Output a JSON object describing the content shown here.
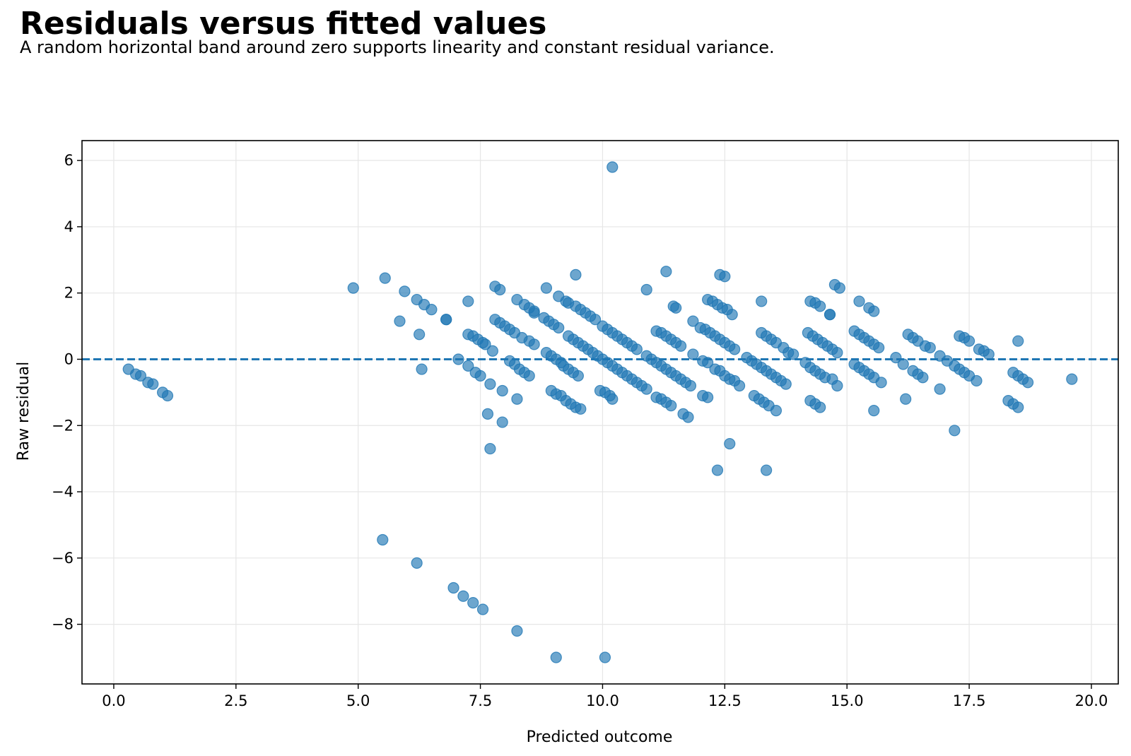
{
  "title": "Residuals versus fitted values",
  "subtitle": "A random horizontal band around zero supports linearity and constant residual variance.",
  "chart_data": {
    "type": "scatter",
    "xlabel": "Predicted outcome",
    "ylabel": "Raw residual",
    "xlim": [
      -0.65,
      20.55
    ],
    "ylim": [
      -9.8,
      6.6
    ],
    "xticks": [
      0.0,
      2.5,
      5.0,
      7.5,
      10.0,
      12.5,
      15.0,
      17.5,
      20.0
    ],
    "xtick_labels": [
      "0.0",
      "2.5",
      "5.0",
      "7.5",
      "10.0",
      "12.5",
      "15.0",
      "17.5",
      "20.0"
    ],
    "yticks": [
      -8,
      -6,
      -4,
      -2,
      0,
      2,
      4,
      6
    ],
    "ytick_labels": [
      "−8",
      "−6",
      "−4",
      "−2",
      "0",
      "2",
      "4",
      "6"
    ],
    "grid": true,
    "reference_line": {
      "y": 0,
      "style": "dashed"
    },
    "colors": {
      "points": "#1f77b4",
      "reference_line": "#1f77b4",
      "grid": "#e6e6e6",
      "axes": "#000000"
    },
    "points": [
      [
        0.3,
        -0.3
      ],
      [
        0.45,
        -0.45
      ],
      [
        0.55,
        -0.5
      ],
      [
        0.7,
        -0.7
      ],
      [
        0.8,
        -0.75
      ],
      [
        1.0,
        -1.0
      ],
      [
        1.1,
        -1.1
      ],
      [
        4.9,
        2.15
      ],
      [
        5.55,
        2.45
      ],
      [
        5.95,
        2.05
      ],
      [
        5.85,
        1.15
      ],
      [
        6.2,
        1.8
      ],
      [
        6.35,
        1.65
      ],
      [
        6.5,
        1.5
      ],
      [
        6.8,
        1.2
      ],
      [
        6.8,
        1.2
      ],
      [
        6.25,
        0.75
      ],
      [
        6.3,
        -0.3
      ],
      [
        7.05,
        0.0
      ],
      [
        7.25,
        1.75
      ],
      [
        7.25,
        0.75
      ],
      [
        7.35,
        0.7
      ],
      [
        7.45,
        0.6
      ],
      [
        7.55,
        0.5
      ],
      [
        7.6,
        0.45
      ],
      [
        7.25,
        -0.2
      ],
      [
        7.4,
        -0.4
      ],
      [
        7.5,
        -0.5
      ],
      [
        7.75,
        0.25
      ],
      [
        7.7,
        -0.75
      ],
      [
        7.95,
        -0.95
      ],
      [
        7.65,
        -1.65
      ],
      [
        7.95,
        -1.9
      ],
      [
        7.7,
        -2.7
      ],
      [
        7.8,
        2.2
      ],
      [
        7.9,
        2.1
      ],
      [
        7.8,
        1.2
      ],
      [
        7.9,
        1.1
      ],
      [
        8.0,
        1.0
      ],
      [
        8.1,
        0.9
      ],
      [
        8.2,
        0.8
      ],
      [
        8.1,
        -0.05
      ],
      [
        8.2,
        -0.15
      ],
      [
        8.3,
        -0.3
      ],
      [
        8.4,
        -0.4
      ],
      [
        8.5,
        -0.5
      ],
      [
        8.25,
        -1.2
      ],
      [
        8.25,
        1.8
      ],
      [
        8.4,
        1.65
      ],
      [
        8.5,
        1.55
      ],
      [
        8.6,
        1.45
      ],
      [
        8.6,
        1.4
      ],
      [
        8.35,
        0.65
      ],
      [
        8.5,
        0.55
      ],
      [
        8.6,
        0.45
      ],
      [
        8.85,
        2.15
      ],
      [
        8.8,
        1.25
      ],
      [
        8.9,
        1.15
      ],
      [
        9.0,
        1.05
      ],
      [
        9.1,
        0.95
      ],
      [
        8.85,
        0.2
      ],
      [
        8.95,
        0.1
      ],
      [
        9.05,
        0.0
      ],
      [
        9.15,
        -0.1
      ],
      [
        9.2,
        -0.2
      ],
      [
        9.3,
        -0.3
      ],
      [
        9.4,
        -0.4
      ],
      [
        9.5,
        -0.5
      ],
      [
        8.95,
        -0.95
      ],
      [
        9.05,
        -1.05
      ],
      [
        9.15,
        -1.1
      ],
      [
        9.25,
        -1.25
      ],
      [
        9.35,
        -1.35
      ],
      [
        9.45,
        -1.45
      ],
      [
        9.55,
        -1.5
      ],
      [
        9.1,
        1.9
      ],
      [
        9.25,
        1.75
      ],
      [
        9.3,
        1.7
      ],
      [
        9.45,
        1.6
      ],
      [
        9.45,
        2.55
      ],
      [
        9.3,
        0.7
      ],
      [
        9.4,
        0.6
      ],
      [
        9.5,
        0.5
      ],
      [
        9.6,
        0.4
      ],
      [
        9.7,
        0.3
      ],
      [
        9.8,
        0.2
      ],
      [
        9.9,
        0.1
      ],
      [
        10.0,
        0.0
      ],
      [
        10.1,
        -0.1
      ],
      [
        10.2,
        -0.2
      ],
      [
        10.3,
        -0.3
      ],
      [
        10.4,
        -0.4
      ],
      [
        9.55,
        1.5
      ],
      [
        9.65,
        1.4
      ],
      [
        9.75,
        1.3
      ],
      [
        9.85,
        1.2
      ],
      [
        10.0,
        1.0
      ],
      [
        10.1,
        0.9
      ],
      [
        10.2,
        0.8
      ],
      [
        10.3,
        0.7
      ],
      [
        10.4,
        0.6
      ],
      [
        10.5,
        0.5
      ],
      [
        10.6,
        0.4
      ],
      [
        10.7,
        0.3
      ],
      [
        10.5,
        -0.5
      ],
      [
        10.6,
        -0.6
      ],
      [
        10.7,
        -0.7
      ],
      [
        10.8,
        -0.8
      ],
      [
        10.9,
        -0.9
      ],
      [
        9.95,
        -0.95
      ],
      [
        10.05,
        -1.0
      ],
      [
        10.15,
        -1.1
      ],
      [
        10.2,
        -1.2
      ],
      [
        10.2,
        5.8
      ],
      [
        10.9,
        2.1
      ],
      [
        11.3,
        2.65
      ],
      [
        11.45,
        1.6
      ],
      [
        11.5,
        1.55
      ],
      [
        10.9,
        0.1
      ],
      [
        11.0,
        0.0
      ],
      [
        11.1,
        -0.1
      ],
      [
        11.2,
        -0.2
      ],
      [
        11.3,
        -0.3
      ],
      [
        11.4,
        -0.4
      ],
      [
        11.5,
        -0.5
      ],
      [
        11.6,
        -0.6
      ],
      [
        11.7,
        -0.7
      ],
      [
        11.8,
        -0.8
      ],
      [
        11.1,
        0.85
      ],
      [
        11.2,
        0.8
      ],
      [
        11.3,
        0.7
      ],
      [
        11.4,
        0.6
      ],
      [
        11.5,
        0.5
      ],
      [
        11.6,
        0.4
      ],
      [
        11.1,
        -1.15
      ],
      [
        11.2,
        -1.2
      ],
      [
        11.3,
        -1.3
      ],
      [
        11.4,
        -1.4
      ],
      [
        11.65,
        -1.65
      ],
      [
        11.75,
        -1.75
      ],
      [
        11.85,
        1.15
      ],
      [
        11.85,
        0.15
      ],
      [
        12.0,
        0.95
      ],
      [
        12.1,
        0.9
      ],
      [
        12.2,
        0.8
      ],
      [
        12.3,
        0.7
      ],
      [
        12.4,
        0.6
      ],
      [
        12.5,
        0.5
      ],
      [
        12.6,
        0.4
      ],
      [
        12.7,
        0.3
      ],
      [
        12.05,
        -0.05
      ],
      [
        12.15,
        -0.1
      ],
      [
        12.3,
        -0.3
      ],
      [
        12.4,
        -0.35
      ],
      [
        12.5,
        -0.5
      ],
      [
        12.6,
        -0.6
      ],
      [
        12.7,
        -0.65
      ],
      [
        12.05,
        -1.1
      ],
      [
        12.15,
        -1.15
      ],
      [
        12.35,
        -3.35
      ],
      [
        12.6,
        -2.55
      ],
      [
        12.15,
        1.8
      ],
      [
        12.25,
        1.75
      ],
      [
        12.35,
        1.65
      ],
      [
        12.45,
        1.55
      ],
      [
        12.55,
        1.5
      ],
      [
        12.65,
        1.35
      ],
      [
        12.4,
        2.55
      ],
      [
        12.5,
        2.5
      ],
      [
        12.8,
        -0.8
      ],
      [
        12.95,
        0.05
      ],
      [
        13.05,
        -0.05
      ],
      [
        13.15,
        -0.15
      ],
      [
        13.25,
        -0.25
      ],
      [
        13.35,
        -0.35
      ],
      [
        13.45,
        -0.45
      ],
      [
        13.55,
        -0.55
      ],
      [
        13.65,
        -0.65
      ],
      [
        13.75,
        -0.75
      ],
      [
        13.25,
        0.8
      ],
      [
        13.35,
        0.7
      ],
      [
        13.45,
        0.6
      ],
      [
        13.55,
        0.5
      ],
      [
        13.7,
        0.35
      ],
      [
        13.8,
        0.2
      ],
      [
        13.9,
        0.15
      ],
      [
        13.1,
        -1.1
      ],
      [
        13.2,
        -1.2
      ],
      [
        13.3,
        -1.3
      ],
      [
        13.4,
        -1.4
      ],
      [
        13.55,
        -1.55
      ],
      [
        13.25,
        1.75
      ],
      [
        13.35,
        -3.35
      ],
      [
        14.15,
        -0.1
      ],
      [
        14.25,
        -0.25
      ],
      [
        14.35,
        -0.35
      ],
      [
        14.45,
        -0.45
      ],
      [
        14.55,
        -0.55
      ],
      [
        14.7,
        -0.6
      ],
      [
        14.8,
        -0.8
      ],
      [
        14.2,
        0.8
      ],
      [
        14.3,
        0.7
      ],
      [
        14.4,
        0.6
      ],
      [
        14.5,
        0.5
      ],
      [
        14.6,
        0.4
      ],
      [
        14.7,
        0.3
      ],
      [
        14.8,
        0.2
      ],
      [
        14.25,
        -1.25
      ],
      [
        14.35,
        -1.35
      ],
      [
        14.45,
        -1.45
      ],
      [
        14.25,
        1.75
      ],
      [
        14.35,
        1.7
      ],
      [
        14.45,
        1.6
      ],
      [
        14.65,
        1.35
      ],
      [
        14.65,
        1.35
      ],
      [
        14.75,
        2.25
      ],
      [
        14.85,
        2.15
      ],
      [
        15.15,
        0.85
      ],
      [
        15.25,
        0.75
      ],
      [
        15.35,
        0.65
      ],
      [
        15.45,
        0.55
      ],
      [
        15.55,
        0.45
      ],
      [
        15.65,
        0.35
      ],
      [
        15.15,
        -0.15
      ],
      [
        15.25,
        -0.25
      ],
      [
        15.35,
        -0.35
      ],
      [
        15.45,
        -0.45
      ],
      [
        15.55,
        -0.55
      ],
      [
        15.7,
        -0.7
      ],
      [
        15.25,
        1.75
      ],
      [
        15.45,
        1.55
      ],
      [
        15.55,
        1.45
      ],
      [
        15.55,
        -1.55
      ],
      [
        16.0,
        0.05
      ],
      [
        16.15,
        -0.15
      ],
      [
        16.25,
        0.75
      ],
      [
        16.35,
        0.65
      ],
      [
        16.45,
        0.55
      ],
      [
        16.6,
        0.4
      ],
      [
        16.7,
        0.35
      ],
      [
        16.35,
        -0.35
      ],
      [
        16.45,
        -0.45
      ],
      [
        16.55,
        -0.55
      ],
      [
        16.2,
        -1.2
      ],
      [
        16.9,
        0.1
      ],
      [
        17.05,
        -0.05
      ],
      [
        17.2,
        -0.2
      ],
      [
        17.3,
        -0.3
      ],
      [
        17.4,
        -0.4
      ],
      [
        17.5,
        -0.5
      ],
      [
        17.65,
        -0.65
      ],
      [
        16.9,
        -0.9
      ],
      [
        17.2,
        -2.15
      ],
      [
        17.3,
        0.7
      ],
      [
        17.4,
        0.65
      ],
      [
        17.5,
        0.55
      ],
      [
        17.7,
        0.3
      ],
      [
        17.8,
        0.25
      ],
      [
        17.9,
        0.15
      ],
      [
        18.3,
        -1.25
      ],
      [
        18.4,
        -1.35
      ],
      [
        18.5,
        -1.45
      ],
      [
        18.4,
        -0.4
      ],
      [
        18.5,
        -0.5
      ],
      [
        18.6,
        -0.6
      ],
      [
        18.7,
        -0.7
      ],
      [
        18.5,
        0.55
      ],
      [
        19.6,
        -0.6
      ],
      [
        5.5,
        -5.45
      ],
      [
        6.2,
        -6.15
      ],
      [
        6.95,
        -6.9
      ],
      [
        7.15,
        -7.15
      ],
      [
        7.35,
        -7.35
      ],
      [
        7.55,
        -7.55
      ],
      [
        8.25,
        -8.2
      ],
      [
        9.05,
        -9.0
      ],
      [
        10.05,
        -9.0
      ]
    ]
  }
}
